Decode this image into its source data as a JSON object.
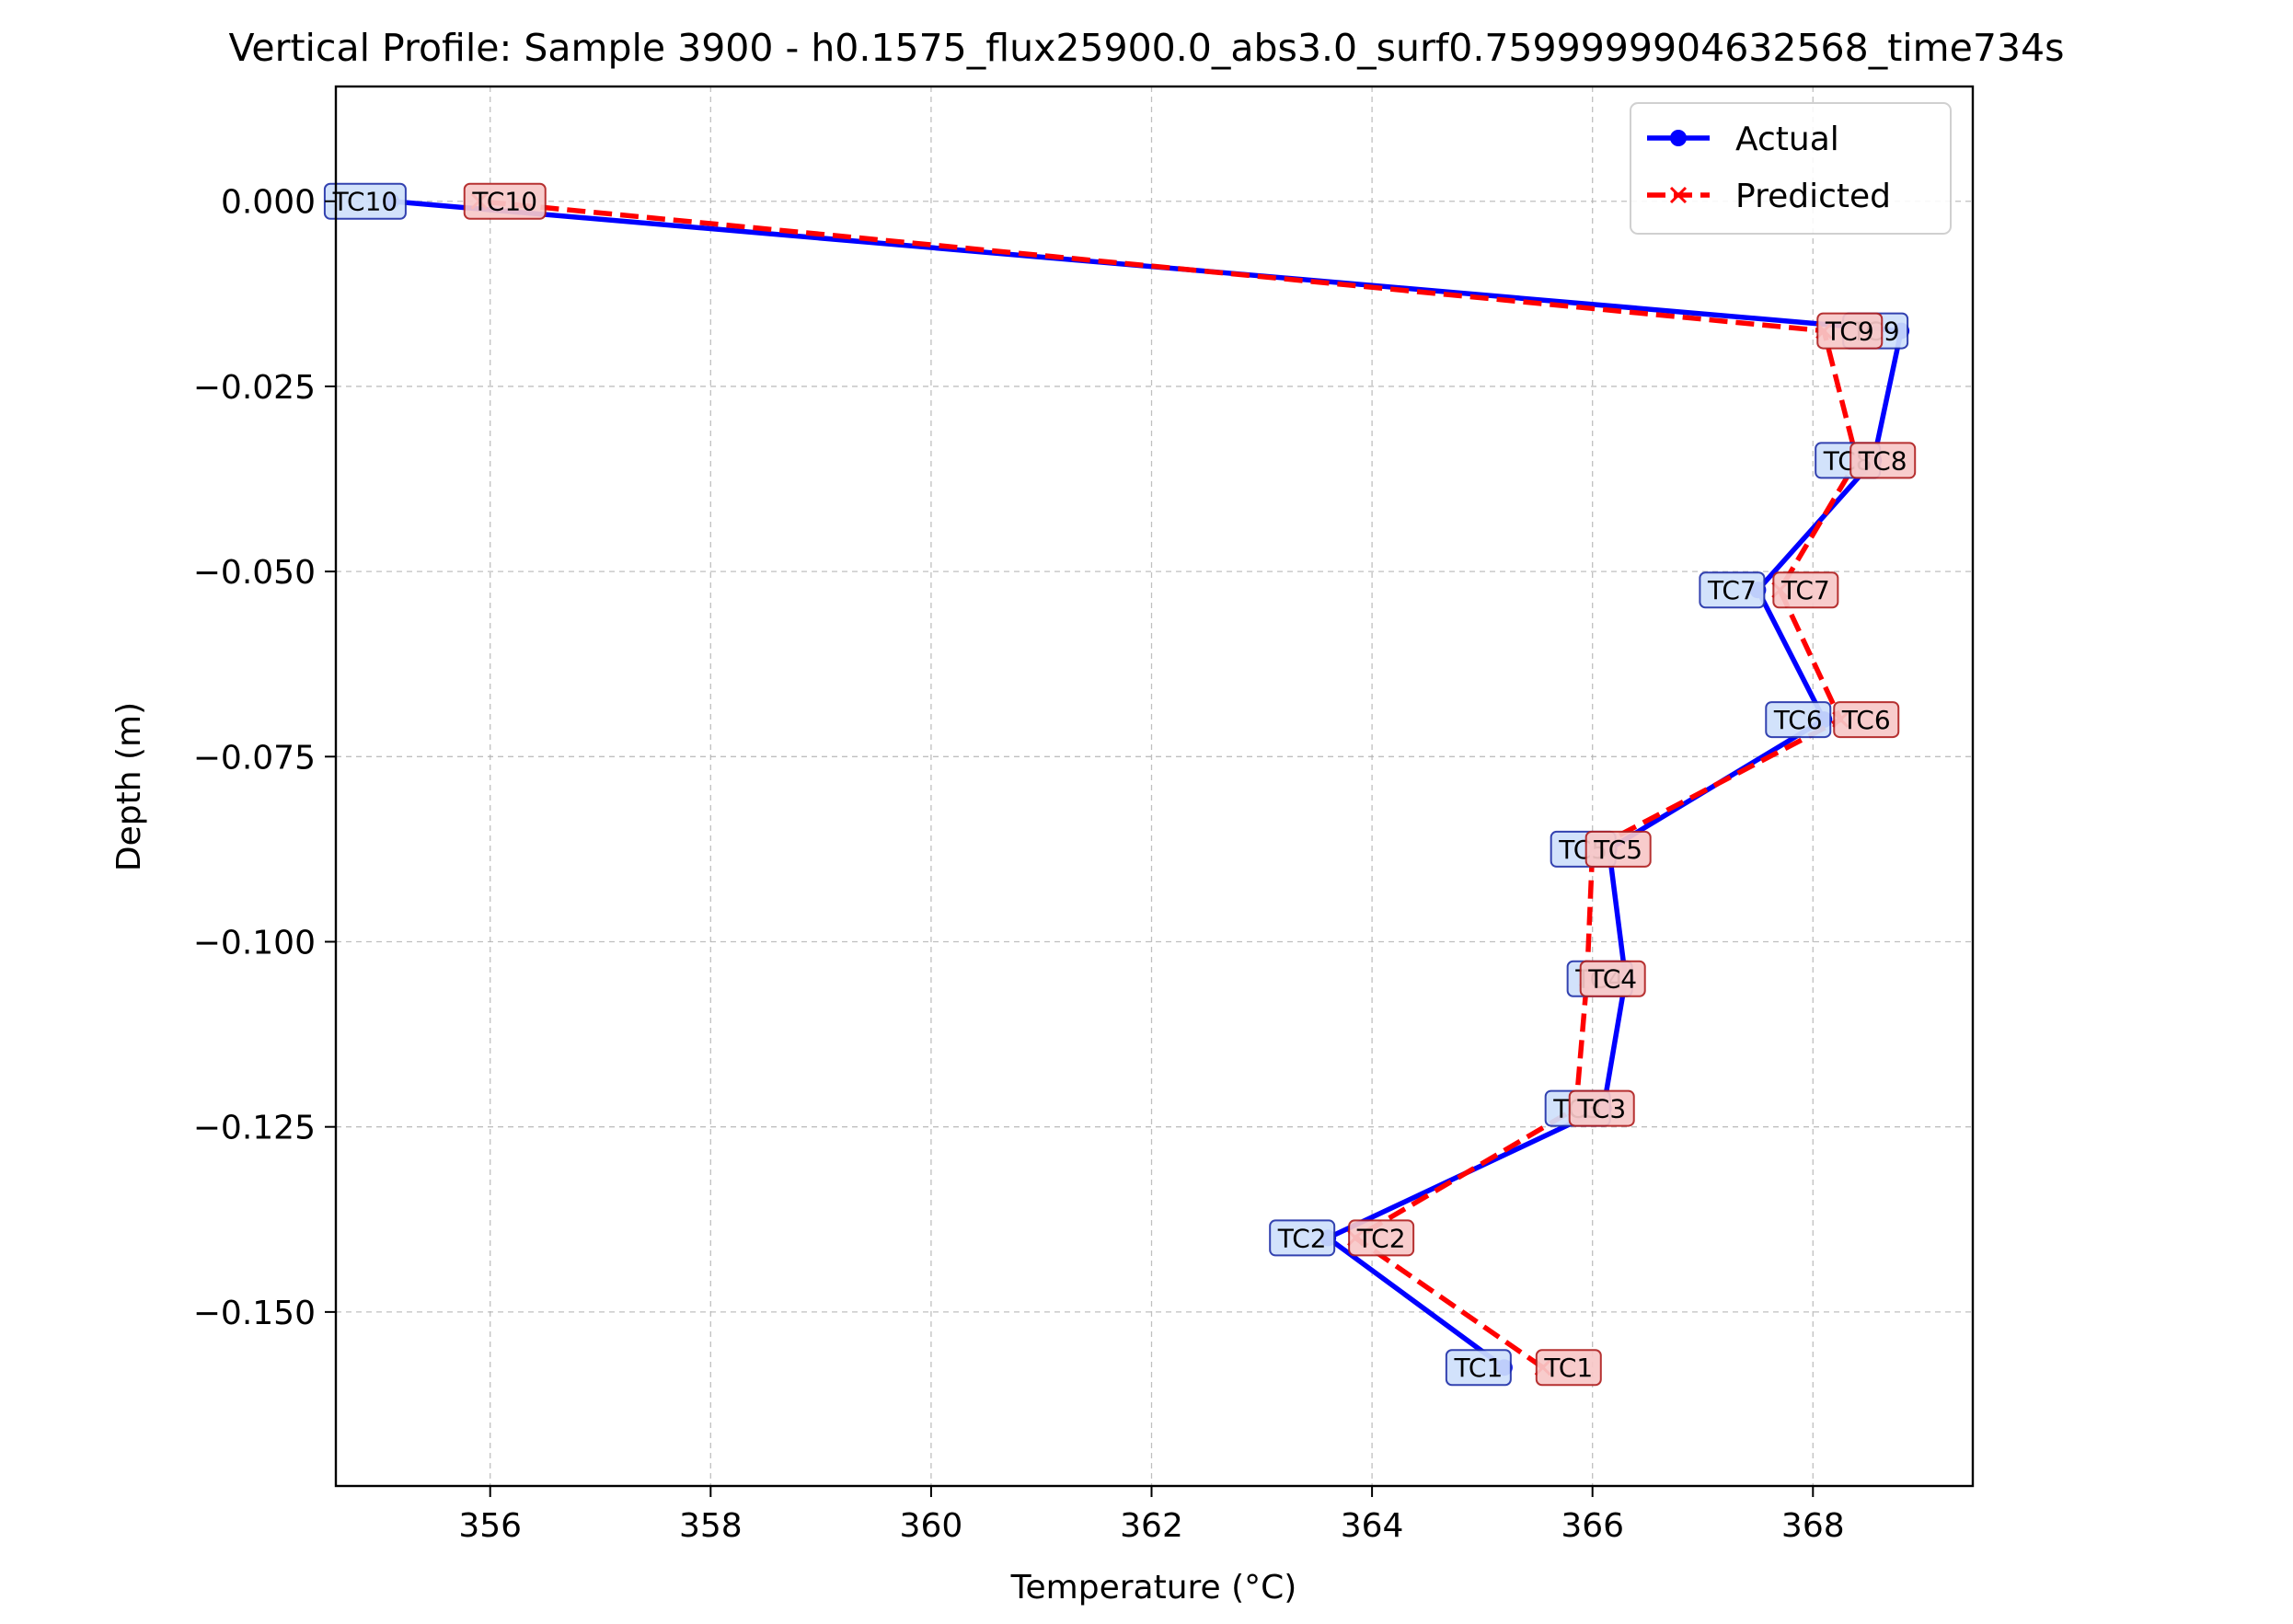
{
  "chart_data": {
    "type": "line",
    "title": "Vertical Profile: Sample 3900 - h0.1575_flux25900.0_abs3.0_surf0.7599999904632568_time734s",
    "xlabel": "Temperature (°C)",
    "ylabel": "Depth (m)",
    "xlim": [
      354.6,
      369.45
    ],
    "ylim": [
      -0.1735,
      0.0155
    ],
    "xticks": [
      356,
      358,
      360,
      362,
      364,
      366,
      368
    ],
    "xtick_labels": [
      "356",
      "358",
      "360",
      "362",
      "364",
      "366",
      "368"
    ],
    "yticks": [
      0.0,
      -0.025,
      -0.05,
      -0.075,
      -0.1,
      -0.125,
      -0.15
    ],
    "ytick_labels": [
      "0.000",
      "−0.025",
      "−0.050",
      "−0.075",
      "−0.100",
      "−0.125",
      "−0.150"
    ],
    "grid": true,
    "legend_position": "top-right",
    "series": [
      {
        "name": "Actual",
        "color": "#0000ff",
        "line_style": "solid",
        "marker": "circle",
        "points": [
          {
            "label": "TC1",
            "temperature": 365.2,
            "depth": -0.1575
          },
          {
            "label": "TC2",
            "temperature": 363.6,
            "depth": -0.14
          },
          {
            "label": "TC3",
            "temperature": 366.1,
            "depth": -0.1225
          },
          {
            "label": "TC4",
            "temperature": 366.3,
            "depth": -0.105
          },
          {
            "label": "TC5",
            "temperature": 366.15,
            "depth": -0.0875
          },
          {
            "label": "TC6",
            "temperature": 368.1,
            "depth": -0.07
          },
          {
            "label": "TC7",
            "temperature": 367.5,
            "depth": -0.0525
          },
          {
            "label": "TC8",
            "temperature": 368.55,
            "depth": -0.035
          },
          {
            "label": "TC9",
            "temperature": 368.8,
            "depth": -0.0175
          },
          {
            "label": "TC10",
            "temperature": 355.1,
            "depth": 0.0
          }
        ]
      },
      {
        "name": "Predicted",
        "color": "#ff0000",
        "line_style": "dashed",
        "marker": "x",
        "points": [
          {
            "label": "TC1",
            "temperature": 365.55,
            "depth": -0.1575
          },
          {
            "label": "TC2",
            "temperature": 363.85,
            "depth": -0.14
          },
          {
            "label": "TC3",
            "temperature": 365.85,
            "depth": -0.1225
          },
          {
            "label": "TC4",
            "temperature": 365.95,
            "depth": -0.105
          },
          {
            "label": "TC5",
            "temperature": 366.0,
            "depth": -0.0875
          },
          {
            "label": "TC6",
            "temperature": 368.25,
            "depth": -0.07
          },
          {
            "label": "TC7",
            "temperature": 367.7,
            "depth": -0.0525
          },
          {
            "label": "TC8",
            "temperature": 368.4,
            "depth": -0.035
          },
          {
            "label": "TC9",
            "temperature": 368.1,
            "depth": -0.0175
          },
          {
            "label": "TC10",
            "temperature": 355.9,
            "depth": 0.0
          }
        ]
      }
    ]
  }
}
